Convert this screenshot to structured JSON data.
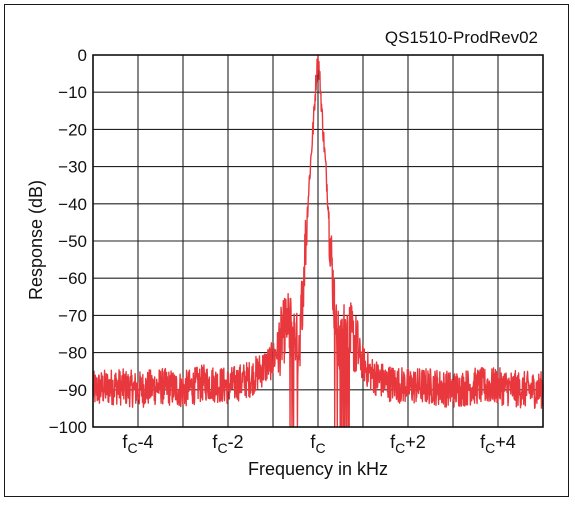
{
  "chart_data": {
    "type": "line",
    "title": "",
    "watermark": "QS1510-ProdRev02",
    "xlabel": "Frequency in kHz",
    "ylabel": "Response (dB)",
    "xlim": [
      -5,
      5
    ],
    "ylim": [
      -100,
      0
    ],
    "x_grid_step_khz": 1,
    "y_grid_step_db": 10,
    "grid": true,
    "legend": "none",
    "line_color": "#e8383d",
    "x_ticks": [
      {
        "value": -4,
        "base": "f",
        "sub": "C",
        "suffix": "-4"
      },
      {
        "value": -2,
        "base": "f",
        "sub": "C",
        "suffix": "-2"
      },
      {
        "value": 0,
        "base": "f",
        "sub": "C",
        "suffix": ""
      },
      {
        "value": 2,
        "base": "f",
        "sub": "C",
        "suffix": "+2"
      },
      {
        "value": 4,
        "base": "f",
        "sub": "C",
        "suffix": "+4"
      }
    ],
    "y_ticks": [
      {
        "value": 0,
        "label": "0"
      },
      {
        "value": -10,
        "label": "−10"
      },
      {
        "value": -20,
        "label": "−20"
      },
      {
        "value": -30,
        "label": "−30"
      },
      {
        "value": -40,
        "label": "−40"
      },
      {
        "value": -50,
        "label": "−50"
      },
      {
        "value": -60,
        "label": "−60"
      },
      {
        "value": -70,
        "label": "−70"
      },
      {
        "value": -80,
        "label": "−80"
      },
      {
        "value": -90,
        "label": "−90"
      },
      {
        "value": -100,
        "label": "−100"
      }
    ],
    "series": [
      {
        "color": "#e8383d",
        "x": [
          -5.0,
          -4.5,
          -4.0,
          -3.5,
          -3.0,
          -2.5,
          -2.0,
          -1.5,
          -1.2,
          -1.0,
          -0.8,
          -0.7,
          -0.6,
          -0.5,
          -0.45,
          -0.4,
          -0.3,
          -0.2,
          -0.1,
          -0.05,
          0.0,
          0.05,
          0.1,
          0.2,
          0.3,
          0.4,
          0.5,
          0.55,
          0.6,
          0.7,
          0.8,
          1.0,
          1.2,
          1.5,
          2.0,
          2.5,
          3.0,
          3.5,
          4.0,
          4.5,
          5.0
        ],
        "y": [
          -90,
          -89,
          -90,
          -89,
          -90,
          -88,
          -89,
          -87,
          -84,
          -82,
          -76,
          -72,
          -73,
          -75,
          -80,
          -75,
          -55,
          -35,
          -18,
          -8,
          0,
          -8,
          -18,
          -35,
          -55,
          -75,
          -80,
          -76,
          -74,
          -75,
          -77,
          -83,
          -86,
          -88,
          -89,
          -89,
          -90,
          -89,
          -89,
          -90,
          -90
        ],
        "noise_db": 5
      }
    ]
  }
}
